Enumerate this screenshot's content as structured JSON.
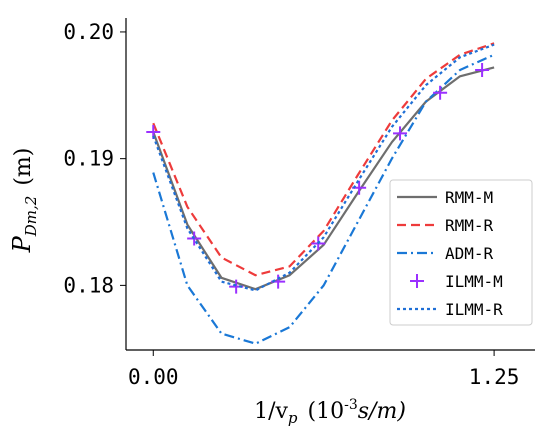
{
  "chart_data": {
    "type": "line",
    "xlabel": {
      "symbol": "1/v",
      "subscript": "p",
      "unit_open": "(10",
      "exponent": "-3",
      "unit_close": "s/m)"
    },
    "ylabel": {
      "symbol": "P",
      "subscript": "Dm,2",
      "unit": "(m)"
    },
    "xlim": [
      -0.1,
      1.4
    ],
    "ylim": [
      0.1749,
      0.2011
    ],
    "xticks": [
      {
        "value": 0,
        "label": "0.00"
      },
      {
        "value": 1.25,
        "label": "1.25"
      }
    ],
    "yticks": [
      {
        "value": 0.18,
        "label": "0.18"
      },
      {
        "value": 0.19,
        "label": "0.19"
      },
      {
        "value": 0.2,
        "label": "0.20"
      }
    ],
    "legend": "right",
    "series": [
      {
        "name": "RMM-M",
        "color": "#6e6e6e",
        "style": "solid",
        "x": [
          0,
          0.125,
          0.25,
          0.375,
          0.5,
          0.625,
          0.75,
          0.875,
          1.0,
          1.125,
          1.25
        ],
        "values": [
          0.1921,
          0.1848,
          0.1806,
          0.1797,
          0.1808,
          0.1832,
          0.1873,
          0.1913,
          0.1945,
          0.1965,
          0.1972
        ]
      },
      {
        "name": "RMM-R",
        "color": "#ee3b3b",
        "style": "dashed",
        "x": [
          0,
          0.125,
          0.25,
          0.375,
          0.5,
          0.625,
          0.75,
          0.875,
          1.0,
          1.125,
          1.25
        ],
        "values": [
          0.1928,
          0.1862,
          0.1822,
          0.1808,
          0.1815,
          0.1843,
          0.1887,
          0.193,
          0.1963,
          0.1982,
          0.1991
        ]
      },
      {
        "name": "ADM-R",
        "color": "#1a78d6",
        "style": "dashdot",
        "x": [
          0,
          0.125,
          0.25,
          0.375,
          0.5,
          0.625,
          0.75,
          0.875,
          1.0,
          1.125,
          1.25
        ],
        "values": [
          0.1889,
          0.18,
          0.1762,
          0.1754,
          0.1767,
          0.18,
          0.185,
          0.19,
          0.1945,
          0.197,
          0.1982
        ]
      },
      {
        "name": "ILMM-M",
        "color": "#9b30ff",
        "style": "marker",
        "x": [
          0,
          0.15,
          0.304,
          0.458,
          0.605,
          0.755,
          0.905,
          1.052,
          1.206
        ],
        "values": [
          0.1921,
          0.1837,
          0.1799,
          0.1803,
          0.1833,
          0.1877,
          0.192,
          0.1952,
          0.197
        ]
      },
      {
        "name": "ILMM-R",
        "color": "#1f6fd6",
        "style": "dotted",
        "x": [
          0,
          0.125,
          0.25,
          0.375,
          0.5,
          0.625,
          0.75,
          0.875,
          1.0,
          1.125,
          1.25
        ],
        "values": [
          0.1918,
          0.1845,
          0.1803,
          0.1796,
          0.181,
          0.1838,
          0.1882,
          0.1925,
          0.1958,
          0.198,
          0.199
        ]
      }
    ]
  }
}
